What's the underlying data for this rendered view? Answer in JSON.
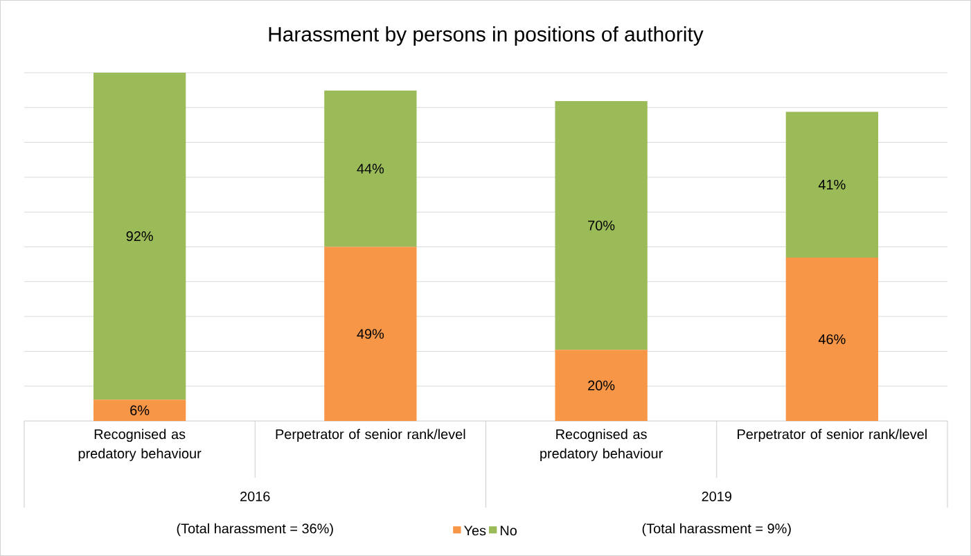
{
  "chart_data": {
    "type": "bar",
    "stacked": true,
    "title": "Harassment by persons in positions of authority",
    "categories": [
      "Recognised as predatory behaviour",
      "Perpetrator of senior rank/level",
      "Recognised as predatory behaviour",
      "Perpetrator of senior rank/level"
    ],
    "series": [
      {
        "name": "Yes",
        "color": "#f79646",
        "values": [
          6,
          49,
          20,
          46
        ],
        "value_labels": [
          "6%",
          "49%",
          "20%",
          "46%"
        ]
      },
      {
        "name": "No",
        "color": "#9bbb59",
        "values": [
          92,
          44,
          70,
          41
        ],
        "value_labels": [
          "92%",
          "44%",
          "70%",
          "41%"
        ]
      }
    ],
    "grid": "y",
    "tick_labels": "x",
    "legend": "bottom",
    "annotations": [
      "2016",
      "2019",
      "(Total harassment = 36%)",
      "(Total harassment = 9%)"
    ]
  }
}
